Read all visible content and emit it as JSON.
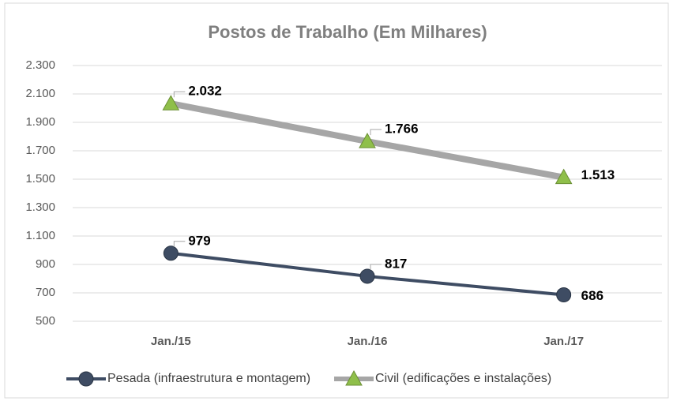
{
  "chart_data": {
    "type": "line",
    "title": "Postos de Trabalho (Em Milhares)",
    "categories": [
      "Jan./15",
      "Jan./16",
      "Jan./17"
    ],
    "series": [
      {
        "name": "Pesada (infraestrutura e montagem)",
        "color": "#3e4c63",
        "marker": "circle",
        "values": [
          979,
          817,
          686
        ]
      },
      {
        "name": "Civil (edificações e instalações)",
        "color": "#a6a6a6",
        "marker_color": "#8fbf4a",
        "marker": "triangle",
        "values": [
          2032,
          1766,
          1513
        ],
        "value_labels": [
          "2.032",
          "1.766",
          "1.513"
        ]
      }
    ],
    "ylim": [
      500,
      2300
    ],
    "yticks": [
      500,
      700,
      900,
      {
        "value": 1100,
        "label": "1.100"
      },
      {
        "value": 1300,
        "label": "1.300"
      },
      {
        "value": 1500,
        "label": "1.500"
      },
      {
        "value": 1700,
        "label": "1.700"
      },
      {
        "value": 1900,
        "label": "1.900"
      },
      {
        "value": 2100,
        "label": "2.100"
      },
      {
        "value": 2300,
        "label": "2.300"
      }
    ],
    "grid": true,
    "legend": "bottom"
  }
}
